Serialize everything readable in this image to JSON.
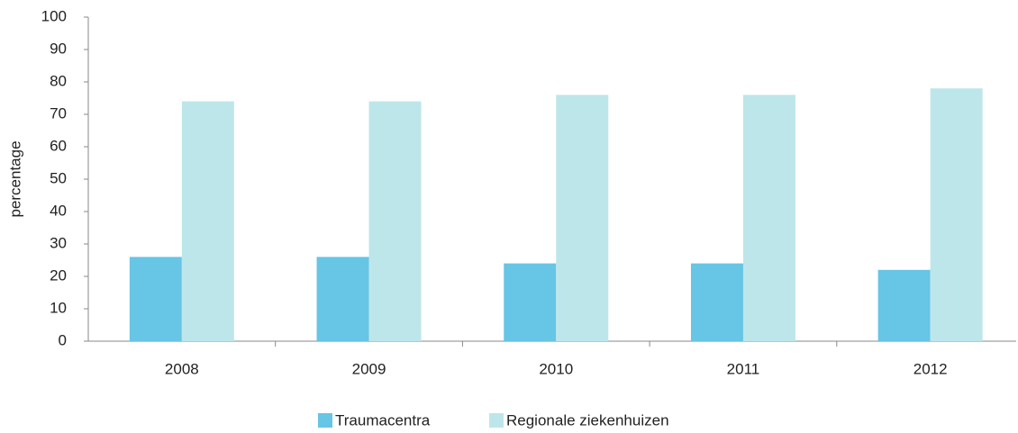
{
  "chart_data": {
    "type": "bar",
    "y_axis_label": "percentage",
    "categories": [
      "2008",
      "2009",
      "2010",
      "2011",
      "2012"
    ],
    "series": [
      {
        "name": "Traumacentra",
        "color": "#67c5e5",
        "values": [
          26,
          26,
          24,
          24,
          22
        ]
      },
      {
        "name": "Regionale ziekenhuizen",
        "color": "#bde6ea",
        "values": [
          74,
          74,
          76,
          76,
          78
        ]
      }
    ],
    "ylim": [
      0,
      100
    ],
    "yticks": [
      0,
      10,
      20,
      30,
      40,
      50,
      60,
      70,
      80,
      90,
      100
    ],
    "grid": false,
    "legend": "bottom"
  }
}
